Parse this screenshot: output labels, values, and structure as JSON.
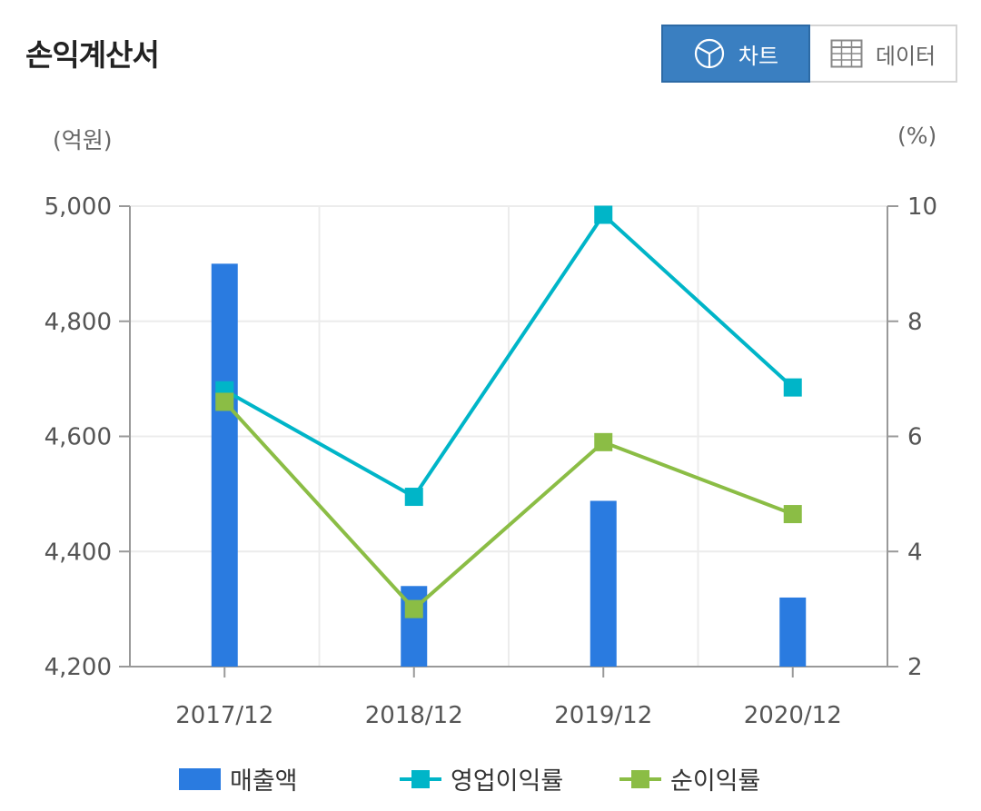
{
  "header": {
    "title": "손익계산서",
    "tabs": [
      {
        "label": "차트",
        "icon": "pie-chart-icon",
        "active": true
      },
      {
        "label": "데이터",
        "icon": "table-icon",
        "active": false
      }
    ]
  },
  "units": {
    "left": "(억원)",
    "right": "(%)"
  },
  "colors": {
    "bar": "#2a7be0",
    "operating": "#00b5c8",
    "net": "#8bbd45",
    "accent": "#3a7fc1"
  },
  "chart_data": {
    "type": "bar",
    "categories": [
      "2017/12",
      "2018/12",
      "2019/12",
      "2020/12"
    ],
    "series": [
      {
        "name": "매출액",
        "type": "bar",
        "axis": "left",
        "values": [
          4900,
          4340,
          4488,
          4320
        ]
      },
      {
        "name": "영업이익률",
        "type": "line",
        "axis": "right",
        "values": [
          6.8,
          4.95,
          9.85,
          6.85
        ]
      },
      {
        "name": "순이익률",
        "type": "line",
        "axis": "right",
        "values": [
          6.6,
          3.0,
          5.9,
          4.65
        ]
      }
    ],
    "y_left": {
      "min": 4200,
      "max": 5000,
      "ticks": [
        4200,
        4400,
        4600,
        4800,
        5000
      ],
      "tick_labels": [
        "4,200",
        "4,400",
        "4,600",
        "4,800",
        "5,000"
      ]
    },
    "y_right": {
      "min": 2,
      "max": 10,
      "ticks": [
        2,
        4,
        6,
        8,
        10
      ],
      "tick_labels": [
        "2",
        "4",
        "6",
        "8",
        "10"
      ]
    },
    "grid": true,
    "legend_position": "bottom"
  }
}
